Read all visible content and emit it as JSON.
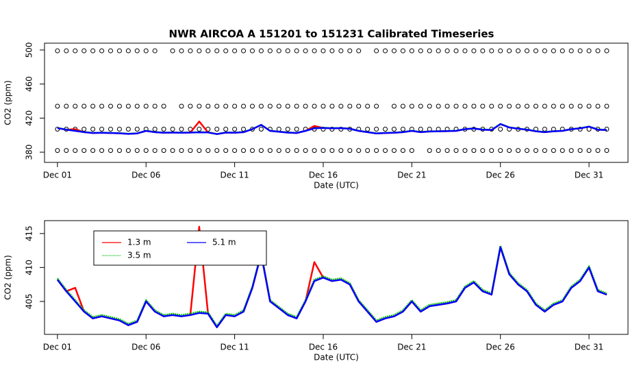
{
  "chart_data": [
    {
      "type": "scatter",
      "title": "NWR   AIRCOA  A   151201  to  151231   Calibrated Timeseries",
      "x_label": "Date (UTC)",
      "y_label": "CO2 (ppm)",
      "xlim": [
        0.27,
        33.2
      ],
      "xticks": [
        {
          "value": 1,
          "label": "Dec 01"
        },
        {
          "value": 6,
          "label": "Dec 06"
        },
        {
          "value": 11,
          "label": "Dec 11"
        },
        {
          "value": 16,
          "label": "Dec 16"
        },
        {
          "value": 21,
          "label": "Dec 21"
        },
        {
          "value": 26,
          "label": "Dec 26"
        },
        {
          "value": 31,
          "label": "Dec 31"
        }
      ],
      "ylim": [
        368,
        508
      ],
      "yticks": [
        380,
        420,
        460,
        500
      ],
      "x": [
        1,
        1.5,
        2,
        2.5,
        3,
        3.5,
        4,
        4.5,
        5,
        5.5,
        6,
        6.5,
        7,
        7.5,
        8,
        8.5,
        9,
        9.5,
        10,
        10.5,
        11,
        11.5,
        12,
        12.5,
        13,
        13.5,
        14,
        14.5,
        15,
        15.5,
        16,
        16.5,
        17,
        17.5,
        18,
        18.5,
        19,
        19.5,
        20,
        20.5,
        21,
        21.5,
        22,
        22.5,
        23,
        23.5,
        24,
        24.5,
        25,
        25.5,
        26,
        26.5,
        27,
        27.5,
        28,
        28.5,
        29,
        29.5,
        30,
        30.5,
        31,
        31.5,
        32
      ],
      "series": [
        {
          "color": "#000000",
          "marker": "circle",
          "values": [
            499,
            499,
            499,
            499,
            499,
            499,
            499,
            499,
            499,
            499,
            499,
            499,
            null,
            499,
            499,
            499,
            499,
            499,
            499,
            499,
            499,
            499,
            499,
            499,
            499,
            499,
            499,
            499,
            499,
            499,
            499,
            499,
            499,
            499,
            499,
            null,
            499,
            499,
            499,
            499,
            499,
            499,
            499,
            499,
            499,
            499,
            499,
            499,
            499,
            499,
            499,
            499,
            499,
            499,
            499,
            499,
            499,
            499,
            499,
            499,
            499,
            499,
            499
          ]
        },
        {
          "color": "#000000",
          "marker": "circle",
          "values": [
            434,
            434,
            434,
            434,
            434,
            434,
            434,
            434,
            434,
            434,
            434,
            434,
            434,
            null,
            434,
            434,
            434,
            434,
            434,
            434,
            434,
            434,
            434,
            434,
            434,
            434,
            434,
            434,
            434,
            434,
            434,
            434,
            434,
            434,
            434,
            434,
            434,
            null,
            434,
            434,
            434,
            434,
            434,
            434,
            434,
            434,
            434,
            434,
            434,
            434,
            434,
            434,
            434,
            434,
            434,
            434,
            434,
            434,
            434,
            434,
            434,
            434,
            434
          ]
        },
        {
          "color": "#000000",
          "marker": "circle",
          "values": [
            407,
            407,
            407,
            407,
            407,
            407,
            407,
            407,
            407,
            407,
            407,
            407,
            407,
            407,
            407,
            407,
            407,
            407,
            407,
            407,
            407,
            407,
            407,
            407,
            407,
            407,
            407,
            407,
            407,
            407,
            407,
            407,
            407,
            407,
            407,
            407,
            407,
            407,
            407,
            407,
            407,
            407,
            407,
            407,
            407,
            407,
            407,
            407,
            407,
            407,
            407,
            407,
            407,
            407,
            407,
            407,
            407,
            407,
            407,
            407,
            407,
            407,
            407
          ]
        },
        {
          "color": "#000000",
          "marker": "circle",
          "values": [
            382,
            382,
            382,
            382,
            382,
            382,
            382,
            382,
            382,
            382,
            382,
            382,
            382,
            382,
            382,
            382,
            382,
            382,
            382,
            382,
            382,
            382,
            382,
            382,
            382,
            382,
            382,
            382,
            382,
            382,
            382,
            382,
            382,
            382,
            382,
            382,
            382,
            382,
            382,
            382,
            382,
            null,
            382,
            382,
            382,
            382,
            382,
            382,
            382,
            382,
            382,
            382,
            382,
            382,
            382,
            382,
            382,
            382,
            382,
            382,
            382,
            382,
            382
          ]
        }
      ]
    },
    {
      "type": "line",
      "x_label": "Date (UTC)",
      "y_label": "CO2 (ppm)",
      "xlim": [
        0.27,
        33.2
      ],
      "xticks": [
        {
          "value": 1,
          "label": "Dec 01"
        },
        {
          "value": 6,
          "label": "Dec 06"
        },
        {
          "value": 11,
          "label": "Dec 11"
        },
        {
          "value": 16,
          "label": "Dec 16"
        },
        {
          "value": 21,
          "label": "Dec 21"
        },
        {
          "value": 26,
          "label": "Dec 26"
        },
        {
          "value": 31,
          "label": "Dec 31"
        }
      ],
      "ylim": [
        400.15,
        416.9
      ],
      "yticks": [
        405,
        410,
        415
      ],
      "legend": "top-left",
      "x": [
        1,
        1.5,
        2,
        2.5,
        3,
        3.5,
        4,
        4.5,
        5,
        5.5,
        6,
        6.5,
        7,
        7.5,
        8,
        8.5,
        9,
        9.5,
        10,
        10.5,
        11,
        11.5,
        12,
        12.5,
        13,
        13.5,
        14,
        14.5,
        15,
        15.5,
        16,
        16.5,
        17,
        17.5,
        18,
        18.5,
        19,
        19.5,
        20,
        20.5,
        21,
        21.5,
        22,
        22.5,
        23,
        23.5,
        24,
        24.5,
        25,
        25.5,
        26,
        26.5,
        27,
        27.5,
        28,
        28.5,
        29,
        29.5,
        30,
        30.5,
        31,
        31.5,
        32
      ],
      "series": [
        {
          "name": "1.3 m",
          "color": "#ff0000",
          "line_style": "solid",
          "values": [
            408.2,
            406.5,
            407,
            403.5,
            402.5,
            402.8,
            402.5,
            402.2,
            401.5,
            402,
            405,
            403.5,
            402.8,
            403,
            402.8,
            403,
            416,
            403.2,
            401.2,
            403,
            402.8,
            403.5,
            407,
            412,
            405,
            404,
            403,
            402.5,
            405,
            410.8,
            408.5,
            408,
            408.2,
            407.5,
            405,
            403.5,
            402,
            402.5,
            402.8,
            403.5,
            405,
            403.5,
            404.3,
            404.5,
            404.7,
            405,
            407,
            407.8,
            406.5,
            406,
            413,
            409,
            407.5,
            406.5,
            404.5,
            403.5,
            404.5,
            405,
            407,
            408,
            410,
            406.5,
            406
          ]
        },
        {
          "name": "3.5 m",
          "color": "#00c000",
          "line_style": "dotted",
          "values": [
            408.4,
            406.7,
            405.2,
            403.7,
            402.7,
            403,
            402.7,
            402.4,
            401.7,
            402.2,
            405.2,
            403.7,
            403,
            403.2,
            403,
            403.2,
            403.5,
            403.4,
            401.4,
            403.2,
            403,
            403.7,
            407.2,
            412.2,
            405.2,
            404.2,
            403.2,
            402.7,
            405.2,
            408.2,
            408.7,
            408.2,
            408.4,
            407.7,
            405.2,
            403.7,
            402.2,
            402.7,
            403,
            403.7,
            405.2,
            403.7,
            404.5,
            404.7,
            404.9,
            405.2,
            407.2,
            408,
            406.7,
            406.2,
            413.2,
            409.2,
            407.7,
            406.7,
            404.7,
            403.7,
            404.7,
            405.2,
            407.2,
            408.2,
            410.2,
            406.7,
            406.2
          ]
        },
        {
          "name": "5.1 m",
          "color": "#0000ff",
          "line_style": "solid",
          "values": [
            408.2,
            406.5,
            405,
            403.5,
            402.5,
            402.8,
            402.5,
            402.2,
            401.5,
            402,
            405,
            403.5,
            402.8,
            403,
            402.8,
            403,
            403.3,
            403.2,
            401.2,
            403,
            402.8,
            403.5,
            407,
            412,
            405,
            404,
            403,
            402.5,
            405,
            408,
            408.5,
            408,
            408.2,
            407.5,
            405,
            403.5,
            402,
            402.5,
            402.8,
            403.5,
            405,
            403.5,
            404.3,
            404.5,
            404.7,
            405,
            407,
            407.8,
            406.5,
            406,
            413,
            409,
            407.5,
            406.5,
            404.5,
            403.5,
            404.5,
            405,
            407,
            408,
            410,
            406.5,
            406
          ]
        }
      ]
    }
  ]
}
